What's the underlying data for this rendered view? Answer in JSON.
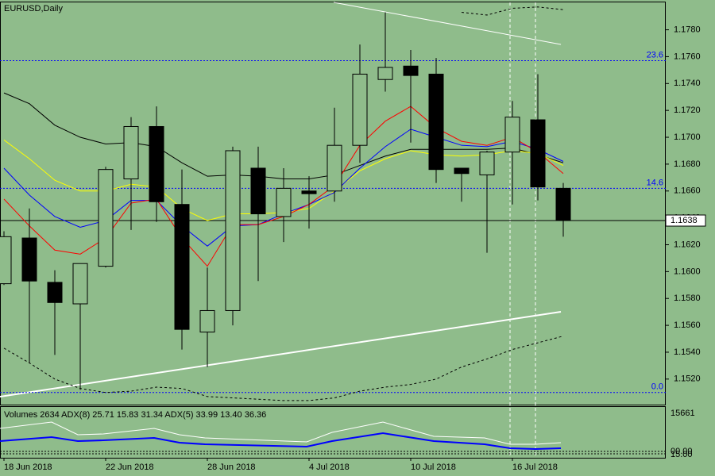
{
  "chart_data": {
    "type": "candlestick",
    "title": "EURUSD,Daily",
    "categories": [
      "18 Jun 2018",
      null,
      null,
      null,
      "22 Jun 2018",
      null,
      null,
      null,
      "28 Jun 2018",
      null,
      null,
      null,
      "4 Jul 2018",
      null,
      null,
      null,
      "10 Jul 2018",
      null,
      null,
      null,
      "16 Jul 2018",
      null,
      null
    ],
    "open": [
      1.1591,
      1.1625,
      1.1592,
      1.1576,
      1.1604,
      1.1669,
      1.1708,
      1.165,
      1.1555,
      1.1571,
      1.1677,
      1.1641,
      1.166,
      1.166,
      1.1694,
      1.1743,
      1.1753,
      1.1747,
      1.1677,
      1.1672,
      1.1689,
      1.1713,
      1.1662
    ],
    "high": [
      1.163,
      1.1647,
      1.1601,
      1.1606,
      1.1678,
      1.1715,
      1.1723,
      1.1676,
      1.1603,
      1.1693,
      1.1693,
      1.1677,
      1.1671,
      1.1722,
      1.1769,
      1.1793,
      1.1765,
      1.1759,
      1.1677,
      1.169,
      1.1727,
      1.1747,
      1.1666
    ],
    "low": [
      1.159,
      1.1532,
      1.1538,
      1.1512,
      1.1603,
      1.1631,
      1.1637,
      1.1542,
      1.1529,
      1.156,
      1.1593,
      1.1622,
      1.1632,
      1.1652,
      1.1681,
      1.1734,
      1.1696,
      1.1666,
      1.1652,
      1.1614,
      1.165,
      1.1653,
      1.1626
    ],
    "close": [
      1.1626,
      1.1593,
      1.1577,
      1.1606,
      1.1676,
      1.1708,
      1.1652,
      1.1557,
      1.1571,
      1.169,
      1.1643,
      1.1662,
      1.1658,
      1.1694,
      1.1747,
      1.1752,
      1.1746,
      1.1676,
      1.1673,
      1.1689,
      1.1715,
      1.1663,
      1.1638
    ],
    "up_color": "#000000",
    "down_color": "#000000",
    "overlays": [
      {
        "color": "#000000",
        "values": [
          1.1733,
          1.1725,
          1.1709,
          1.17,
          1.1695,
          1.1696,
          1.1693,
          1.1681,
          1.1671,
          1.1672,
          1.1671,
          1.1669,
          1.1669,
          1.1672,
          1.1679,
          1.1686,
          1.1691,
          1.1691,
          1.1691,
          1.1691,
          1.1692,
          1.1687,
          1.1681
        ]
      },
      {
        "color": "#ffff00",
        "values": [
          1.1698,
          1.1684,
          1.1668,
          1.166,
          1.166,
          1.1665,
          1.1663,
          1.1647,
          1.1638,
          1.1643,
          1.1643,
          1.1644,
          1.1647,
          1.166,
          1.1675,
          1.1684,
          1.169,
          1.1687,
          1.1686,
          1.1687,
          1.169,
          1.1688,
          1.1679
        ]
      },
      {
        "color": "#0000ff",
        "values": [
          1.1677,
          1.1657,
          1.1641,
          1.1633,
          1.1638,
          1.1653,
          1.1653,
          1.1634,
          1.1619,
          1.1634,
          1.1635,
          1.1643,
          1.165,
          1.1659,
          1.1677,
          1.1693,
          1.1706,
          1.17,
          1.1694,
          1.1693,
          1.1697,
          1.1691,
          1.1682
        ]
      },
      {
        "color": "#ff0000",
        "values": [
          1.1654,
          1.1634,
          1.1616,
          1.1613,
          1.1625,
          1.1651,
          1.1654,
          1.1625,
          1.1604,
          1.1635,
          1.1635,
          1.1641,
          1.165,
          1.1664,
          1.1694,
          1.1712,
          1.1723,
          1.1707,
          1.1697,
          1.1694,
          1.17,
          1.1689,
          1.1673
        ]
      },
      {
        "color": "#000000",
        "dash": true,
        "values": [
          null,
          null,
          null,
          null,
          null,
          null,
          null,
          null,
          null,
          null,
          null,
          null,
          null,
          null,
          null,
          null,
          null,
          null,
          1.1793,
          1.1791,
          1.1796,
          1.1797,
          1.1795
        ]
      },
      {
        "color": "#000000",
        "dash": true,
        "values": [
          1.1543,
          1.1532,
          1.152,
          1.1513,
          1.151,
          1.1511,
          1.1514,
          1.1513,
          1.1507,
          1.1506,
          1.1505,
          1.1504,
          1.1504,
          1.1506,
          1.1511,
          1.1514,
          1.1516,
          1.152,
          1.1529,
          1.1535,
          1.1542,
          1.1547,
          1.1552
        ]
      }
    ],
    "fib_levels": [
      {
        "value": 1.1757,
        "label": "23.6"
      },
      {
        "value": 1.1662,
        "label": "14.6"
      },
      {
        "value": 1.151,
        "label": "0.0"
      }
    ],
    "last_price": {
      "value": 1.1638,
      "label": "1.1638"
    },
    "ylim": [
      1.1501,
      1.1801
    ],
    "yticks": [
      {
        "value": 1.152,
        "label": "1.1520"
      },
      {
        "value": 1.154,
        "label": "1.1540"
      },
      {
        "value": 1.156,
        "label": "1.1560"
      },
      {
        "value": 1.158,
        "label": "1.1580"
      },
      {
        "value": 1.16,
        "label": "1.1600"
      },
      {
        "value": 1.162,
        "label": "1.1620"
      },
      {
        "value": 1.164,
        "label": "1.1640"
      },
      {
        "value": 1.166,
        "label": "1.1660"
      },
      {
        "value": 1.168,
        "label": "1.1680"
      },
      {
        "value": 1.17,
        "label": "1.1700"
      },
      {
        "value": 1.172,
        "label": "1.1720"
      },
      {
        "value": 1.174,
        "label": "1.1740"
      },
      {
        "value": 1.176,
        "label": "1.1760"
      },
      {
        "value": 1.178,
        "label": "1.1780"
      }
    ],
    "indicator_title": "Volumes 2634 ADX(8) 25.71 15.83 31.34 ADX(5) 33.99 13.40 36.36",
    "indicator_axis_labels": [
      "15661",
      "00.00",
      "15.00"
    ]
  }
}
